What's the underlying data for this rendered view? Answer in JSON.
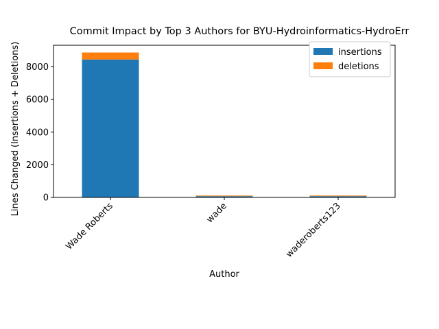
{
  "chart_data": {
    "type": "bar",
    "stacked": true,
    "title": "Commit Impact by Top 3 Authors for BYU-Hydroinformatics-HydroErr",
    "xlabel": "Author",
    "ylabel": "Lines Changed (Insertions + Deletions)",
    "categories": [
      "Wade Roberts",
      "wade",
      "waderoberts123"
    ],
    "series": [
      {
        "name": "insertions",
        "values": [
          8450,
          75,
          75
        ],
        "color": "#1f77b4"
      },
      {
        "name": "deletions",
        "values": [
          430,
          40,
          40
        ],
        "color": "#ff7f0e"
      }
    ],
    "ylim": [
      0,
      9324
    ],
    "yticks": [
      0,
      2000,
      4000,
      6000,
      8000
    ],
    "grid": false,
    "legend_position": "top-right"
  }
}
